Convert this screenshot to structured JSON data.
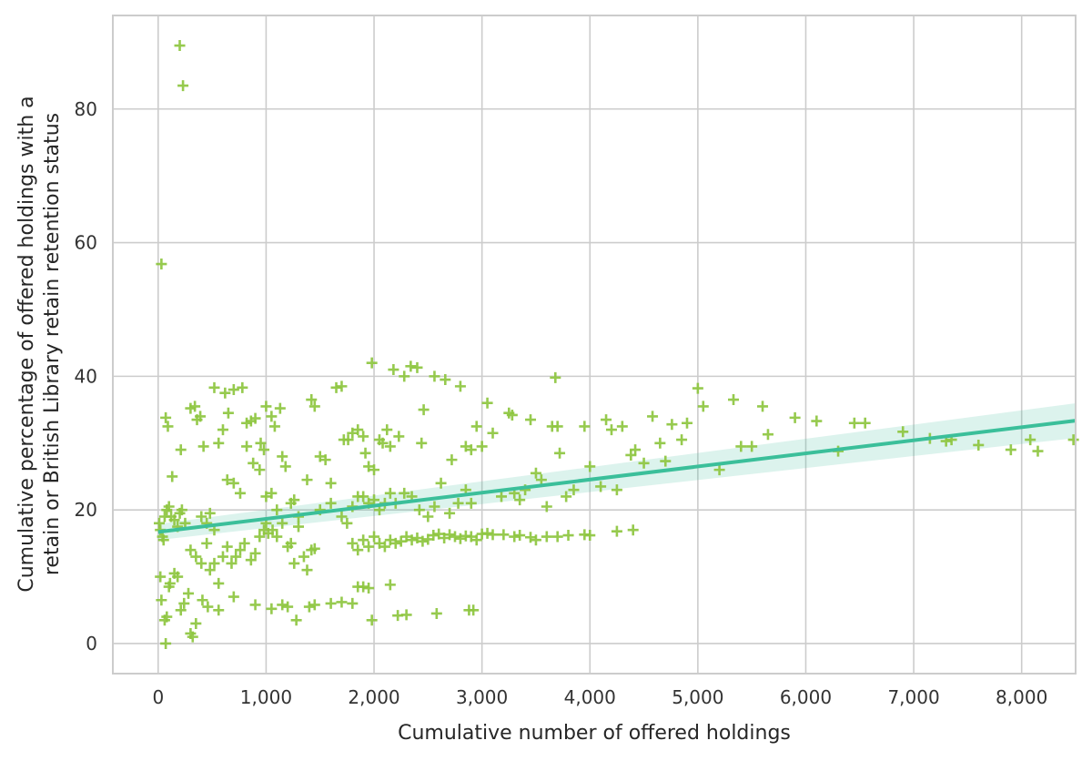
{
  "chart_data": {
    "type": "scatter",
    "title": "",
    "xlabel": "Cumulative number of offered holdings",
    "ylabel_lines": [
      "Cumulative percentage of offered holdings with a",
      "retain or British Library retain retention status"
    ],
    "xlim": [
      -420,
      8500
    ],
    "ylim": [
      -4.5,
      94
    ],
    "x_ticks": [
      0,
      1000,
      2000,
      3000,
      4000,
      5000,
      6000,
      7000,
      8000
    ],
    "x_tick_labels": [
      "0",
      "1,000",
      "2,000",
      "3,000",
      "4,000",
      "5,000",
      "6,000",
      "7,000",
      "8,000"
    ],
    "y_ticks": [
      0,
      20,
      40,
      60,
      80
    ],
    "y_tick_labels": [
      "0",
      "20",
      "40",
      "60",
      "80"
    ],
    "grid": true,
    "colors": {
      "points": "#8dc63f",
      "trend": "#3bbf9a",
      "band": "#3bbf9a",
      "grid": "#cccccc",
      "frame": "#cccccc"
    },
    "marker": "plus",
    "trend_line": {
      "intercept": 16.7,
      "slope": 0.00196,
      "ci_halfwidth_start": 1.2,
      "ci_halfwidth_end": 2.6
    },
    "points": [
      [
        200,
        89.5
      ],
      [
        230,
        83.5
      ],
      [
        30,
        56.8
      ],
      [
        10,
        18
      ],
      [
        20,
        17
      ],
      [
        40,
        16
      ],
      [
        60,
        19
      ],
      [
        80,
        20
      ],
      [
        100,
        20.5
      ],
      [
        50,
        15.5
      ],
      [
        120,
        19
      ],
      [
        150,
        18.5
      ],
      [
        180,
        17.5
      ],
      [
        200,
        19.5
      ],
      [
        220,
        20
      ],
      [
        250,
        18
      ],
      [
        70,
        33.8
      ],
      [
        90,
        32.5
      ],
      [
        130,
        25
      ],
      [
        210,
        29
      ],
      [
        300,
        35.2
      ],
      [
        340,
        35.5
      ],
      [
        360,
        33.5
      ],
      [
        390,
        34
      ],
      [
        420,
        29.5
      ],
      [
        20,
        10
      ],
      [
        30,
        6.5
      ],
      [
        60,
        3.5
      ],
      [
        80,
        4
      ],
      [
        70,
        0
      ],
      [
        100,
        8.5
      ],
      [
        110,
        9
      ],
      [
        150,
        10.5
      ],
      [
        180,
        10
      ],
      [
        210,
        5
      ],
      [
        240,
        6
      ],
      [
        280,
        7.5
      ],
      [
        300,
        1.5
      ],
      [
        320,
        1
      ],
      [
        350,
        3
      ],
      [
        410,
        6.5
      ],
      [
        460,
        5.5
      ],
      [
        560,
        5
      ],
      [
        700,
        7
      ],
      [
        900,
        5.8
      ],
      [
        400,
        19
      ],
      [
        450,
        18
      ],
      [
        480,
        19.5
      ],
      [
        520,
        17
      ],
      [
        520,
        38.3
      ],
      [
        620,
        37.5
      ],
      [
        650,
        34.5
      ],
      [
        700,
        38
      ],
      [
        780,
        38.3
      ],
      [
        820,
        33
      ],
      [
        860,
        33.3
      ],
      [
        900,
        33.7
      ],
      [
        950,
        30
      ],
      [
        980,
        29
      ],
      [
        1000,
        35.5
      ],
      [
        1050,
        34
      ],
      [
        1080,
        32.5
      ],
      [
        1130,
        35.2
      ],
      [
        560,
        30
      ],
      [
        600,
        32
      ],
      [
        640,
        24.5
      ],
      [
        700,
        24
      ],
      [
        760,
        22.5
      ],
      [
        820,
        29.5
      ],
      [
        880,
        27
      ],
      [
        940,
        26
      ],
      [
        1000,
        22
      ],
      [
        1050,
        22.5
      ],
      [
        1100,
        20
      ],
      [
        1150,
        28
      ],
      [
        1180,
        26.5
      ],
      [
        1230,
        21
      ],
      [
        1260,
        21.5
      ],
      [
        1300,
        19
      ],
      [
        300,
        14
      ],
      [
        350,
        13
      ],
      [
        400,
        12
      ],
      [
        450,
        15
      ],
      [
        480,
        11
      ],
      [
        520,
        12
      ],
      [
        560,
        9
      ],
      [
        600,
        13
      ],
      [
        640,
        14.5
      ],
      [
        680,
        12
      ],
      [
        720,
        13
      ],
      [
        760,
        14
      ],
      [
        800,
        15
      ],
      [
        860,
        12.5
      ],
      [
        900,
        13.5
      ],
      [
        940,
        16
      ],
      [
        980,
        17
      ],
      [
        1000,
        18
      ],
      [
        1020,
        16.5
      ],
      [
        1060,
        17
      ],
      [
        1100,
        16
      ],
      [
        1150,
        18
      ],
      [
        1200,
        14.5
      ],
      [
        1230,
        15
      ],
      [
        1260,
        12
      ],
      [
        1300,
        17.5
      ],
      [
        1350,
        13
      ],
      [
        1380,
        11
      ],
      [
        1420,
        14
      ],
      [
        1450,
        14.2
      ],
      [
        1050,
        5.2
      ],
      [
        1150,
        5.8
      ],
      [
        1200,
        5.5
      ],
      [
        1280,
        3.5
      ],
      [
        1400,
        5.5
      ],
      [
        1450,
        5.8
      ],
      [
        1600,
        6
      ],
      [
        1700,
        6.2
      ],
      [
        1800,
        6
      ],
      [
        1850,
        8.5
      ],
      [
        1900,
        8.5
      ],
      [
        1950,
        8.3
      ],
      [
        1980,
        3.5
      ],
      [
        2150,
        8.8
      ],
      [
        2220,
        4.2
      ],
      [
        2300,
        4.3
      ],
      [
        2580,
        4.5
      ],
      [
        2880,
        5
      ],
      [
        2920,
        5
      ],
      [
        1380,
        24.5
      ],
      [
        1420,
        36.5
      ],
      [
        1450,
        35.5
      ],
      [
        1500,
        28
      ],
      [
        1550,
        27.5
      ],
      [
        1600,
        24
      ],
      [
        1650,
        38.3
      ],
      [
        1700,
        38.5
      ],
      [
        1720,
        30.5
      ],
      [
        1760,
        30.5
      ],
      [
        1800,
        31.5
      ],
      [
        1850,
        32
      ],
      [
        1900,
        31
      ],
      [
        1920,
        28.5
      ],
      [
        1950,
        26.5
      ],
      [
        1980,
        42
      ],
      [
        2000,
        26
      ],
      [
        2050,
        30.5
      ],
      [
        2080,
        30
      ],
      [
        2120,
        32
      ],
      [
        2150,
        29.5
      ],
      [
        2180,
        41
      ],
      [
        2230,
        31
      ],
      [
        2280,
        40
      ],
      [
        2340,
        41.5
      ],
      [
        2400,
        41.3
      ],
      [
        2440,
        30
      ],
      [
        2460,
        35
      ],
      [
        2560,
        40
      ],
      [
        2660,
        39.5
      ],
      [
        2720,
        27.5
      ],
      [
        2800,
        38.5
      ],
      [
        2850,
        29.5
      ],
      [
        2900,
        29
      ],
      [
        2950,
        32.5
      ],
      [
        1500,
        20
      ],
      [
        1600,
        21
      ],
      [
        1700,
        19
      ],
      [
        1750,
        18
      ],
      [
        1800,
        20.5
      ],
      [
        1850,
        22
      ],
      [
        1900,
        22
      ],
      [
        1950,
        21
      ],
      [
        2000,
        21.5
      ],
      [
        2050,
        20
      ],
      [
        2100,
        21
      ],
      [
        2150,
        22.5
      ],
      [
        2200,
        21
      ],
      [
        2280,
        22.5
      ],
      [
        2350,
        22
      ],
      [
        2420,
        20
      ],
      [
        2500,
        19
      ],
      [
        2560,
        20.5
      ],
      [
        2620,
        24
      ],
      [
        2700,
        19.5
      ],
      [
        2780,
        21
      ],
      [
        2850,
        23
      ],
      [
        2900,
        21
      ],
      [
        1800,
        15
      ],
      [
        1850,
        14
      ],
      [
        1900,
        15.5
      ],
      [
        1950,
        14.5
      ],
      [
        2000,
        16
      ],
      [
        2050,
        15
      ],
      [
        2100,
        14.5
      ],
      [
        2150,
        15.5
      ],
      [
        2200,
        15
      ],
      [
        2250,
        15.3
      ],
      [
        2300,
        16
      ],
      [
        2350,
        15.5
      ],
      [
        2400,
        15.8
      ],
      [
        2450,
        15.3
      ],
      [
        2500,
        15.6
      ],
      [
        2550,
        16.2
      ],
      [
        2600,
        16.4
      ],
      [
        2650,
        15.8
      ],
      [
        2700,
        16.3
      ],
      [
        2750,
        16
      ],
      [
        2800,
        15.7
      ],
      [
        2850,
        16.1
      ],
      [
        2900,
        16
      ],
      [
        2950,
        15.5
      ],
      [
        3000,
        16.4
      ],
      [
        3050,
        16.5
      ],
      [
        3100,
        16.3
      ],
      [
        3200,
        16.3
      ],
      [
        3300,
        16
      ],
      [
        3350,
        16.2
      ],
      [
        3450,
        15.9
      ],
      [
        3500,
        15.5
      ],
      [
        3600,
        16
      ],
      [
        3700,
        16
      ],
      [
        3800,
        16.2
      ],
      [
        3950,
        16.3
      ],
      [
        4000,
        16.2
      ],
      [
        4250,
        16.8
      ],
      [
        4400,
        17
      ],
      [
        3000,
        29.5
      ],
      [
        3050,
        36
      ],
      [
        3100,
        31.5
      ],
      [
        3180,
        22
      ],
      [
        3250,
        34.5
      ],
      [
        3280,
        34.2
      ],
      [
        3300,
        22.5
      ],
      [
        3350,
        21.5
      ],
      [
        3400,
        23
      ],
      [
        3450,
        33.5
      ],
      [
        3500,
        25.5
      ],
      [
        3550,
        24.5
      ],
      [
        3600,
        20.5
      ],
      [
        3650,
        32.5
      ],
      [
        3680,
        39.8
      ],
      [
        3700,
        32.5
      ],
      [
        3720,
        28.5
      ],
      [
        3780,
        22
      ],
      [
        3850,
        23
      ],
      [
        3950,
        32.5
      ],
      [
        4000,
        26.5
      ],
      [
        4100,
        23.5
      ],
      [
        4150,
        33.5
      ],
      [
        4200,
        32
      ],
      [
        4250,
        23
      ],
      [
        4300,
        32.5
      ],
      [
        4380,
        28.2
      ],
      [
        4420,
        29
      ],
      [
        4500,
        27
      ],
      [
        4580,
        34
      ],
      [
        4650,
        30
      ],
      [
        4700,
        27.3
      ],
      [
        4760,
        32.8
      ],
      [
        4850,
        30.5
      ],
      [
        4900,
        33
      ],
      [
        5000,
        38.2
      ],
      [
        5050,
        35.5
      ],
      [
        5200,
        26
      ],
      [
        5330,
        36.5
      ],
      [
        5400,
        29.5
      ],
      [
        5500,
        29.5
      ],
      [
        5600,
        35.5
      ],
      [
        5650,
        31.3
      ],
      [
        5900,
        33.8
      ],
      [
        6100,
        33.3
      ],
      [
        6300,
        28.8
      ],
      [
        6450,
        33
      ],
      [
        6550,
        33
      ],
      [
        6900,
        31.7
      ],
      [
        7150,
        30.7
      ],
      [
        7300,
        30.3
      ],
      [
        7350,
        30.5
      ],
      [
        7600,
        29.7
      ],
      [
        7900,
        29
      ],
      [
        8080,
        30.5
      ],
      [
        8150,
        28.8
      ],
      [
        8480,
        30.5
      ]
    ]
  }
}
